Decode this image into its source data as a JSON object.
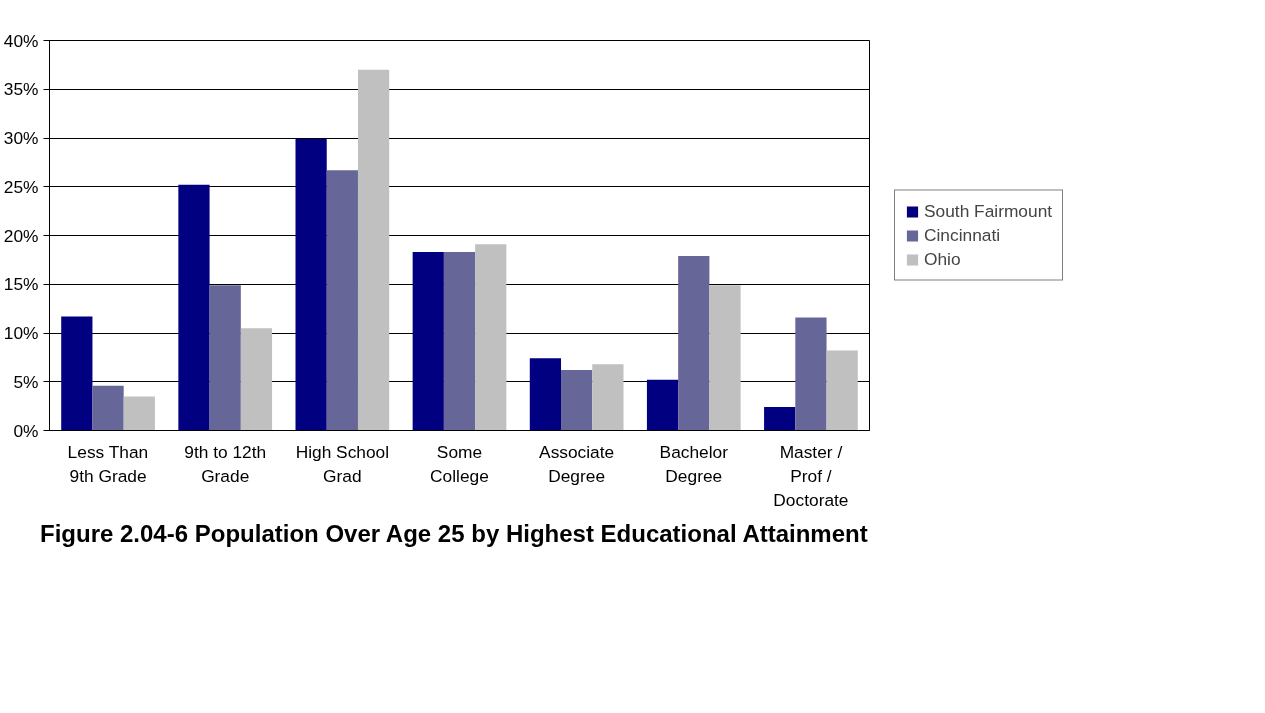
{
  "chart_data": {
    "type": "bar",
    "title": "Figure 2.04-6  Population Over Age 25 by Highest Educational Attainment",
    "categories": [
      "Less Than\n9th Grade",
      "9th to 12th\nGrade",
      "High School\nGrad",
      "Some\nCollege",
      "Associate\nDegree",
      "Bachelor\nDegree",
      "Master /\nProf /\nDoctorate"
    ],
    "series": [
      {
        "name": "South Fairmount",
        "color": "#000080",
        "values": [
          11.7,
          25.2,
          29.9,
          18.3,
          7.4,
          5.2,
          2.4
        ]
      },
      {
        "name": "Cincinnati",
        "color": "#666699",
        "values": [
          4.6,
          14.9,
          26.7,
          18.3,
          6.2,
          17.9,
          11.6
        ]
      },
      {
        "name": "Ohio",
        "color": "#c0c0c0",
        "values": [
          3.5,
          10.5,
          37.0,
          19.1,
          6.8,
          14.9,
          8.2
        ]
      }
    ],
    "ylim": [
      0,
      40
    ],
    "yticks": [
      {
        "value": 0,
        "label": "0%"
      },
      {
        "value": 5,
        "label": "5%"
      },
      {
        "value": 10,
        "label": "10%"
      },
      {
        "value": 15,
        "label": "15%"
      },
      {
        "value": 20,
        "label": "20%"
      },
      {
        "value": 25,
        "label": "25%"
      },
      {
        "value": 30,
        "label": "30%"
      },
      {
        "value": 35,
        "label": "35%"
      },
      {
        "value": 40,
        "label": "40%"
      }
    ],
    "grid": "y",
    "legend": "right"
  }
}
